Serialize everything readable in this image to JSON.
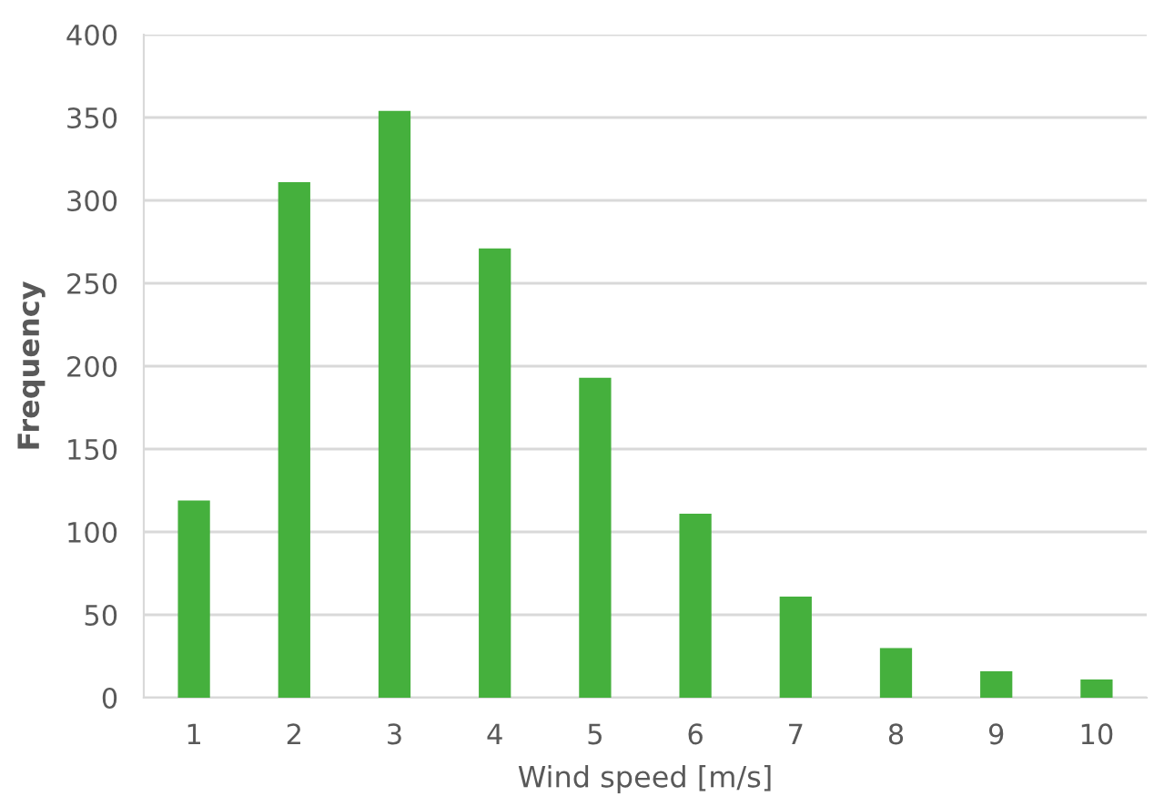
{
  "chart_data": {
    "type": "bar",
    "xlabel": "Wind speed [m/s]",
    "ylabel": "Frequency",
    "categories": [
      "1",
      "2",
      "3",
      "4",
      "5",
      "6",
      "7",
      "8",
      "9",
      "10"
    ],
    "values": [
      119,
      311,
      354,
      271,
      193,
      111,
      61,
      30,
      16,
      11
    ],
    "color": "#45b03d",
    "ylim": [
      0,
      400
    ],
    "yticks": [
      0,
      50,
      100,
      150,
      200,
      250,
      300,
      350,
      400
    ],
    "grid": "y"
  }
}
